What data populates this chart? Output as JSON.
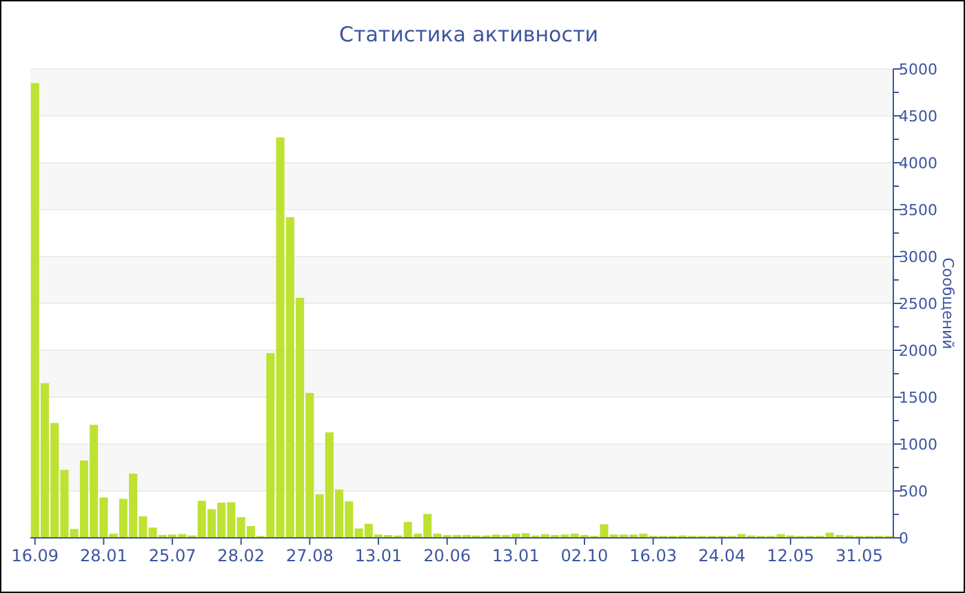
{
  "chart_data": {
    "type": "bar",
    "title": "Статистика активности",
    "ylabel": "Сообщений",
    "categories": [
      "16.09",
      null,
      null,
      null,
      null,
      null,
      null,
      "28.01",
      null,
      null,
      null,
      null,
      null,
      null,
      "25.07",
      null,
      null,
      null,
      null,
      null,
      null,
      "28.02",
      null,
      null,
      null,
      null,
      null,
      null,
      "27.08",
      null,
      null,
      null,
      null,
      null,
      null,
      "13.01",
      null,
      null,
      null,
      null,
      null,
      null,
      "20.06",
      null,
      null,
      null,
      null,
      null,
      null,
      "13.01",
      null,
      null,
      null,
      null,
      null,
      null,
      "02.10",
      null,
      null,
      null,
      null,
      null,
      null,
      "16.03",
      null,
      null,
      null,
      null,
      null,
      null,
      "24.04",
      null,
      null,
      null,
      null,
      null,
      null,
      "12.05",
      null,
      null,
      null,
      null,
      null,
      null,
      "31.05",
      null,
      null,
      null
    ],
    "values": [
      4850,
      1650,
      1225,
      725,
      95,
      825,
      1205,
      430,
      45,
      415,
      685,
      230,
      110,
      30,
      35,
      40,
      25,
      395,
      305,
      375,
      380,
      220,
      125,
      20,
      1970,
      4270,
      3420,
      2560,
      1545,
      465,
      1125,
      515,
      390,
      100,
      150,
      35,
      30,
      25,
      170,
      45,
      255,
      45,
      30,
      30,
      30,
      25,
      25,
      35,
      30,
      45,
      50,
      25,
      40,
      30,
      35,
      45,
      30,
      20,
      145,
      35,
      35,
      35,
      45,
      20,
      20,
      20,
      25,
      20,
      20,
      20,
      20,
      20,
      40,
      25,
      20,
      20,
      40,
      25,
      20,
      20,
      20,
      55,
      30,
      25,
      20,
      20,
      20,
      20
    ],
    "color": "#bee232",
    "ylim": [
      0,
      5000
    ],
    "yticks": [
      0,
      {
        "value": 250,
        "label": null
      },
      500,
      {
        "value": 750,
        "label": null
      },
      1000,
      {
        "value": 1250,
        "label": null
      },
      1500,
      {
        "value": 1750,
        "label": null
      },
      2000,
      {
        "value": 2250,
        "label": null
      },
      2500,
      {
        "value": 2750,
        "label": null
      },
      3000,
      {
        "value": 3250,
        "label": null
      },
      3500,
      {
        "value": 3750,
        "label": null
      },
      4000,
      {
        "value": 4250,
        "label": null
      },
      4500,
      {
        "value": 4750,
        "label": null
      },
      5000
    ],
    "grid": "y"
  }
}
